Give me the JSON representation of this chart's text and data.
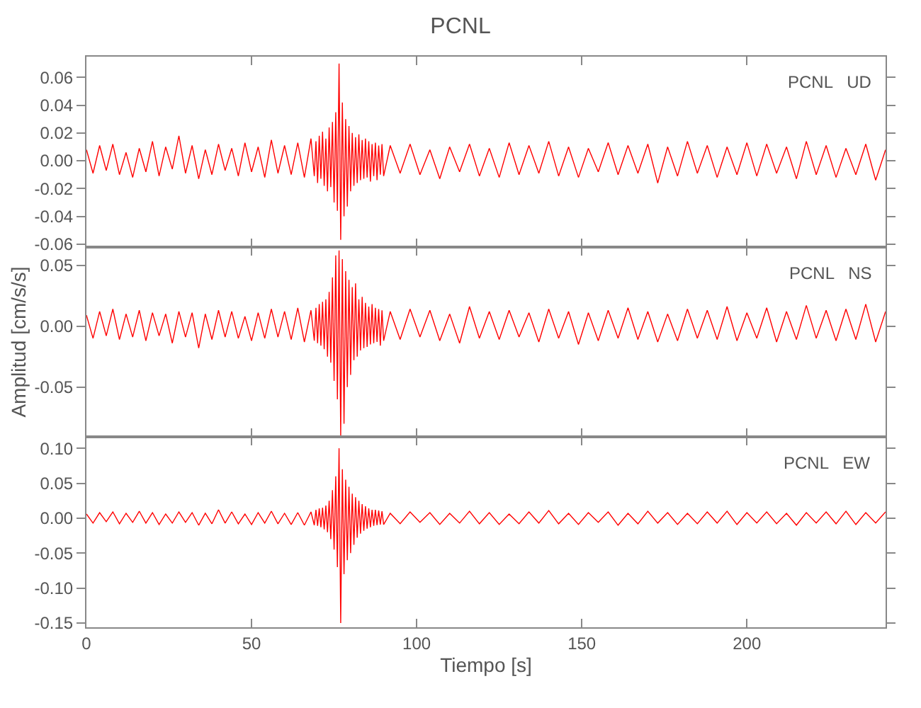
{
  "chart_data": [
    {
      "type": "line",
      "title": "PCNL",
      "annotations": [
        "PCNL   UD"
      ],
      "tick_labels": "y",
      "x": [
        0,
        2,
        4,
        6,
        8,
        10,
        12,
        14,
        16,
        18,
        20,
        22,
        24,
        26,
        28,
        30,
        32,
        34,
        36,
        38,
        40,
        42,
        44,
        46,
        48,
        50,
        52,
        54,
        56,
        58,
        60,
        62,
        64,
        66,
        68,
        69,
        69.5,
        70,
        70.5,
        71,
        71.5,
        72,
        72.5,
        73,
        73.5,
        74,
        74.5,
        75,
        75.5,
        76,
        76.5,
        77,
        77.5,
        78,
        78.5,
        79,
        79.5,
        80,
        80.5,
        81,
        81.5,
        82,
        82.5,
        83,
        83.5,
        84,
        84.5,
        85,
        85.5,
        86,
        86.5,
        87,
        87.5,
        88,
        88.5,
        89,
        89.5,
        90,
        92,
        95,
        98,
        101,
        104,
        107,
        110,
        113,
        116,
        119,
        122,
        125,
        128,
        131,
        134,
        137,
        140,
        143,
        146,
        149,
        152,
        155,
        158,
        161,
        164,
        167,
        170,
        173,
        176,
        179,
        182,
        185,
        188,
        191,
        194,
        197,
        200,
        203,
        206,
        209,
        212,
        215,
        218,
        221,
        224,
        227,
        230,
        233,
        236,
        239,
        242
      ],
      "series": [
        {
          "color": "#ff0000",
          "values": [
            0.008,
            -0.009,
            0.011,
            -0.007,
            0.012,
            -0.01,
            0.006,
            -0.012,
            0.009,
            -0.008,
            0.014,
            -0.011,
            0.01,
            -0.006,
            0.018,
            -0.009,
            0.011,
            -0.013,
            0.008,
            -0.01,
            0.012,
            -0.007,
            0.009,
            -0.011,
            0.013,
            -0.008,
            0.01,
            -0.012,
            0.015,
            -0.009,
            0.011,
            -0.01,
            0.013,
            -0.012,
            0.016,
            -0.011,
            0.014,
            -0.016,
            0.018,
            -0.013,
            0.021,
            -0.018,
            0.016,
            -0.022,
            0.024,
            -0.019,
            0.028,
            -0.03,
            0.035,
            -0.036,
            0.07,
            -0.057,
            0.042,
            -0.04,
            0.03,
            -0.033,
            0.025,
            -0.022,
            0.02,
            -0.018,
            0.017,
            -0.016,
            0.019,
            -0.014,
            0.015,
            -0.013,
            0.016,
            -0.012,
            0.014,
            -0.015,
            0.012,
            -0.011,
            0.013,
            -0.014,
            0.011,
            -0.01,
            0.012,
            -0.011,
            0.011,
            -0.009,
            0.012,
            -0.01,
            0.008,
            -0.013,
            0.01,
            -0.008,
            0.012,
            -0.011,
            0.009,
            -0.012,
            0.013,
            -0.01,
            0.011,
            -0.009,
            0.014,
            -0.011,
            0.01,
            -0.012,
            0.009,
            -0.008,
            0.013,
            -0.01,
            0.011,
            -0.009,
            0.012,
            -0.016,
            0.01,
            -0.011,
            0.014,
            -0.009,
            0.011,
            -0.012,
            0.01,
            -0.01,
            0.013,
            -0.011,
            0.012,
            -0.009,
            0.01,
            -0.013,
            0.014,
            -0.01,
            0.011,
            -0.012,
            0.009,
            -0.01,
            0.012,
            -0.014,
            0.008
          ]
        }
      ],
      "xlim": [
        0,
        242
      ],
      "xticks": [
        0,
        50,
        100,
        150,
        200
      ],
      "ylim": [
        -0.062,
        0.075
      ],
      "yticks": [
        {
          "value": -0.06,
          "label": "-0.06"
        },
        {
          "value": -0.04,
          "label": "-0.04"
        },
        {
          "value": -0.02,
          "label": "-0.02"
        },
        {
          "value": 0,
          "label": "0.00"
        },
        {
          "value": 0.02,
          "label": "0.02"
        },
        {
          "value": 0.04,
          "label": "0.04"
        },
        {
          "value": 0.06,
          "label": "0.06"
        }
      ]
    },
    {
      "type": "line",
      "ylabel": "Amplitud [cm/s/s]",
      "annotations": [
        "PCNL   NS"
      ],
      "tick_labels": "y",
      "x": [
        0,
        2,
        4,
        6,
        8,
        10,
        12,
        14,
        16,
        18,
        20,
        22,
        24,
        26,
        28,
        30,
        32,
        34,
        36,
        38,
        40,
        42,
        44,
        46,
        48,
        50,
        52,
        54,
        56,
        58,
        60,
        62,
        64,
        66,
        68,
        69,
        69.5,
        70,
        70.5,
        71,
        71.5,
        72,
        72.5,
        73,
        73.5,
        74,
        74.5,
        75,
        75.5,
        76,
        76.5,
        77,
        77.5,
        78,
        78.5,
        79,
        79.5,
        80,
        80.5,
        81,
        81.5,
        82,
        82.5,
        83,
        83.5,
        84,
        84.5,
        85,
        85.5,
        86,
        86.5,
        87,
        87.5,
        88,
        88.5,
        89,
        89.5,
        90,
        92,
        95,
        98,
        101,
        104,
        107,
        110,
        113,
        116,
        119,
        122,
        125,
        128,
        131,
        134,
        137,
        140,
        143,
        146,
        149,
        152,
        155,
        158,
        161,
        164,
        167,
        170,
        173,
        176,
        179,
        182,
        185,
        188,
        191,
        194,
        197,
        200,
        203,
        206,
        209,
        212,
        215,
        218,
        221,
        224,
        227,
        230,
        233,
        236,
        239,
        242
      ],
      "series": [
        {
          "color": "#ff0000",
          "values": [
            0.009,
            -0.01,
            0.012,
            -0.008,
            0.014,
            -0.011,
            0.01,
            -0.009,
            0.013,
            -0.012,
            0.011,
            -0.008,
            0.01,
            -0.014,
            0.012,
            -0.009,
            0.011,
            -0.018,
            0.01,
            -0.011,
            0.013,
            -0.009,
            0.012,
            -0.01,
            0.008,
            -0.012,
            0.011,
            -0.01,
            0.014,
            -0.009,
            0.012,
            -0.011,
            0.015,
            -0.013,
            0.013,
            -0.012,
            0.015,
            -0.014,
            0.018,
            -0.016,
            0.02,
            -0.019,
            0.022,
            -0.025,
            0.028,
            -0.03,
            0.04,
            -0.045,
            0.058,
            -0.06,
            0.062,
            -0.09,
            0.055,
            -0.08,
            0.045,
            -0.05,
            0.038,
            -0.04,
            0.032,
            -0.028,
            0.035,
            -0.025,
            0.022,
            -0.02,
            0.024,
            -0.018,
            0.019,
            -0.017,
            0.016,
            -0.015,
            0.018,
            -0.014,
            0.015,
            -0.013,
            0.014,
            -0.016,
            0.013,
            -0.012,
            0.012,
            -0.011,
            0.014,
            -0.009,
            0.013,
            -0.012,
            0.01,
            -0.014,
            0.016,
            -0.01,
            0.012,
            -0.011,
            0.013,
            -0.009,
            0.011,
            -0.013,
            0.014,
            -0.01,
            0.012,
            -0.015,
            0.011,
            -0.012,
            0.013,
            -0.01,
            0.015,
            -0.011,
            0.012,
            -0.013,
            0.01,
            -0.012,
            0.014,
            -0.01,
            0.013,
            -0.011,
            0.016,
            -0.012,
            0.011,
            -0.01,
            0.015,
            -0.013,
            0.012,
            -0.011,
            0.017,
            -0.01,
            0.013,
            -0.012,
            0.014,
            -0.011,
            0.018,
            -0.013,
            0.012
          ]
        }
      ],
      "xlim": [
        0,
        242
      ],
      "xticks": [
        0,
        50,
        100,
        150,
        200
      ],
      "ylim": [
        -0.091,
        0.065
      ],
      "yticks": [
        {
          "value": -0.05,
          "label": "-0.05"
        },
        {
          "value": 0,
          "label": "0.00"
        },
        {
          "value": 0.05,
          "label": "0.05"
        }
      ]
    },
    {
      "type": "line",
      "xlabel": "Tiempo [s]",
      "annotations": [
        "PCNL   EW"
      ],
      "x": [
        0,
        2,
        4,
        6,
        8,
        10,
        12,
        14,
        16,
        18,
        20,
        22,
        24,
        26,
        28,
        30,
        32,
        34,
        36,
        38,
        40,
        42,
        44,
        46,
        48,
        50,
        52,
        54,
        56,
        58,
        60,
        62,
        64,
        66,
        68,
        69,
        69.5,
        70,
        70.5,
        71,
        71.5,
        72,
        72.5,
        73,
        73.5,
        74,
        74.5,
        75,
        75.5,
        76,
        76.5,
        77,
        77.5,
        78,
        78.5,
        79,
        79.5,
        80,
        80.5,
        81,
        81.5,
        82,
        82.5,
        83,
        83.5,
        84,
        84.5,
        85,
        85.5,
        86,
        86.5,
        87,
        87.5,
        88,
        88.5,
        89,
        89.5,
        90,
        92,
        95,
        98,
        101,
        104,
        107,
        110,
        113,
        116,
        119,
        122,
        125,
        128,
        131,
        134,
        137,
        140,
        143,
        146,
        149,
        152,
        155,
        158,
        161,
        164,
        167,
        170,
        173,
        176,
        179,
        182,
        185,
        188,
        191,
        194,
        197,
        200,
        203,
        206,
        209,
        212,
        215,
        218,
        221,
        224,
        227,
        230,
        233,
        236,
        239,
        242
      ],
      "series": [
        {
          "color": "#ff0000",
          "values": [
            0.006,
            -0.007,
            0.008,
            -0.005,
            0.009,
            -0.008,
            0.007,
            -0.006,
            0.01,
            -0.007,
            0.008,
            -0.009,
            0.006,
            -0.007,
            0.009,
            -0.006,
            0.008,
            -0.01,
            0.007,
            -0.008,
            0.012,
            -0.007,
            0.009,
            -0.008,
            0.006,
            -0.009,
            0.008,
            -0.007,
            0.01,
            -0.008,
            0.007,
            -0.009,
            0.008,
            -0.01,
            0.009,
            -0.01,
            0.012,
            -0.011,
            0.014,
            -0.013,
            0.015,
            -0.016,
            0.018,
            -0.02,
            0.025,
            -0.03,
            0.04,
            -0.045,
            0.06,
            -0.07,
            0.1,
            -0.15,
            0.07,
            -0.08,
            0.055,
            -0.06,
            0.045,
            -0.05,
            0.035,
            -0.038,
            0.03,
            -0.028,
            0.025,
            -0.022,
            0.02,
            -0.018,
            0.017,
            -0.015,
            0.014,
            -0.013,
            0.012,
            -0.011,
            0.012,
            -0.01,
            0.011,
            -0.009,
            0.01,
            -0.009,
            0.007,
            -0.008,
            0.009,
            -0.006,
            0.008,
            -0.009,
            0.007,
            -0.007,
            0.01,
            -0.008,
            0.008,
            -0.009,
            0.006,
            -0.008,
            0.009,
            -0.007,
            0.011,
            -0.008,
            0.007,
            -0.009,
            0.008,
            -0.006,
            0.009,
            -0.01,
            0.007,
            -0.008,
            0.01,
            -0.007,
            0.008,
            -0.009,
            0.007,
            -0.008,
            0.009,
            -0.007,
            0.01,
            -0.009,
            0.008,
            -0.007,
            0.009,
            -0.008,
            0.007,
            -0.01,
            0.008,
            -0.007,
            0.009,
            -0.008,
            0.01,
            -0.009,
            0.008,
            -0.007,
            0.009
          ]
        }
      ],
      "xlim": [
        0,
        242
      ],
      "xticks": [
        0,
        50,
        100,
        150,
        200
      ],
      "ylim": [
        -0.156,
        0.116
      ],
      "yticks": [
        {
          "value": -0.15,
          "label": "-0.15"
        },
        {
          "value": -0.1,
          "label": "-0.10"
        },
        {
          "value": -0.05,
          "label": "-0.05"
        },
        {
          "value": 0,
          "label": "0.00"
        },
        {
          "value": 0.05,
          "label": "0.05"
        },
        {
          "value": 0.1,
          "label": "0.10"
        }
      ]
    }
  ]
}
